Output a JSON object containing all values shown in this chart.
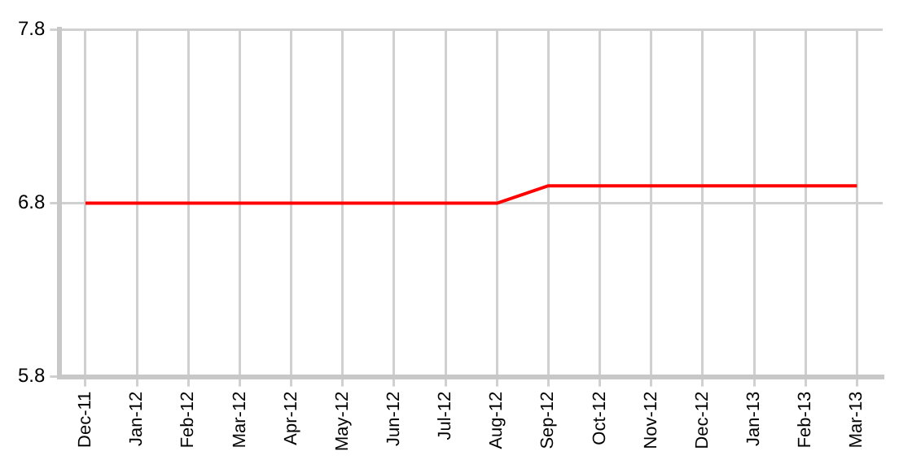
{
  "chart_data": {
    "type": "line",
    "categories": [
      "Dec-11",
      "Jan-12",
      "Feb-12",
      "Mar-12",
      "Apr-12",
      "May-12",
      "Jun-12",
      "Jul-12",
      "Aug-12",
      "Sep-12",
      "Oct-12",
      "Nov-12",
      "Dec-12",
      "Jan-13",
      "Feb-13",
      "Mar-13"
    ],
    "series": [
      {
        "color": "#ff0000",
        "values": [
          6.8,
          6.8,
          6.8,
          6.8,
          6.8,
          6.8,
          6.8,
          6.8,
          6.8,
          6.9,
          6.9,
          6.9,
          6.9,
          6.9,
          6.9,
          6.9
        ]
      }
    ],
    "ylim": [
      5.8,
      7.8
    ],
    "yticks": [
      5.8,
      6.8,
      7.8
    ],
    "grid": true,
    "legend": false,
    "marker": "none",
    "line_style": "solid"
  }
}
